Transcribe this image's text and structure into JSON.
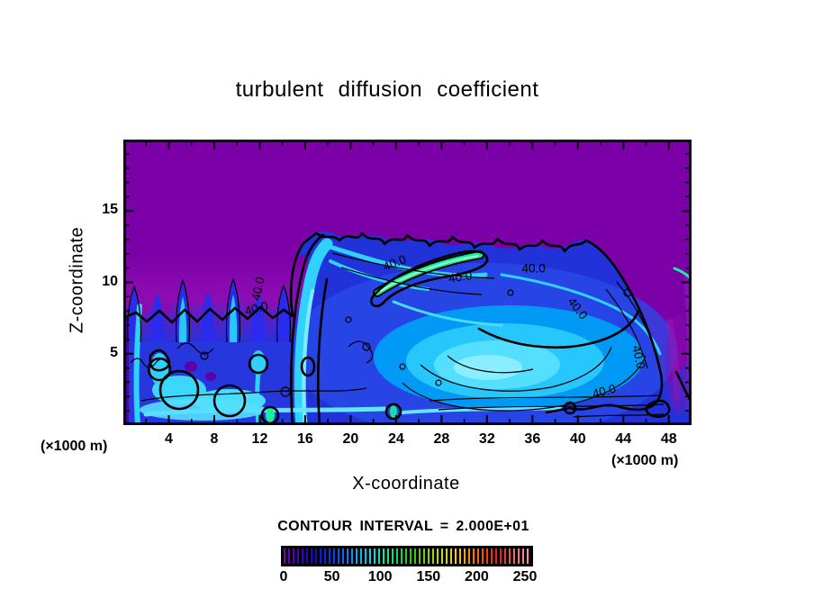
{
  "chart_data": {
    "type": "filled_contour",
    "title": "turbulent diffusion coefficient",
    "xlabel": "X-coordinate",
    "ylabel": "Z-coordinate",
    "x_units_note": "(×1000 m)",
    "y_units_note": "(×1000 m)",
    "xlim": [
      0,
      50
    ],
    "ylim": [
      0,
      20
    ],
    "x_tick_labels": [
      "4",
      "8",
      "12",
      "16",
      "20",
      "24",
      "28",
      "32",
      "36",
      "40",
      "44",
      "48"
    ],
    "x_major_step": 4,
    "x_minor_step": 2,
    "y_tick_labels": [
      "5",
      "10",
      "15"
    ],
    "y_major_step": 5,
    "y_minor_step": 1,
    "contour_interval_label": "CONTOUR INTERVAL = 2.000E+01",
    "contour_interval": 20,
    "labeled_contour": "40.0",
    "contour_label_points": [
      {
        "x": 11.8,
        "z": 7.9,
        "rot": -15
      },
      {
        "x": 12.2,
        "z": 9.5,
        "rot": -78
      },
      {
        "x": 24.0,
        "z": 11.1,
        "rot": -22
      },
      {
        "x": 29.7,
        "z": 10.1,
        "rot": -8
      },
      {
        "x": 36.1,
        "z": 10.7,
        "rot": 0
      },
      {
        "x": 39.7,
        "z": 8.0,
        "rot": 52
      },
      {
        "x": 45.0,
        "z": 4.7,
        "rot": 78
      },
      {
        "x": 42.4,
        "z": 2.1,
        "rot": -15
      }
    ],
    "colorbar": {
      "min": 0,
      "max": 250,
      "tick_labels": [
        "0",
        "50",
        "100",
        "150",
        "200",
        "250"
      ],
      "stops": [
        "#7A00BE",
        "#4400CC",
        "#1A00DC",
        "#0030EE",
        "#0066FF",
        "#00A8FF",
        "#00D8F0",
        "#00EEB0",
        "#00DD60",
        "#2ECC00",
        "#7FD800",
        "#C8DE00",
        "#FFCC00",
        "#FF8800",
        "#FF4400",
        "#E81818",
        "#F06868",
        "#FF8C9C"
      ]
    },
    "colors": {
      "page_background": "#ffffff",
      "field_purple": "#7C00A8",
      "field_magenta_blend": "#8F10B4",
      "field_blue": "#2132D8",
      "field_cyan": "#2FD2FF",
      "field_pale_cyan": "#8FEFFF",
      "highlight_green": "#17F09A",
      "contour_line": "#000000",
      "text": "#000000"
    }
  }
}
